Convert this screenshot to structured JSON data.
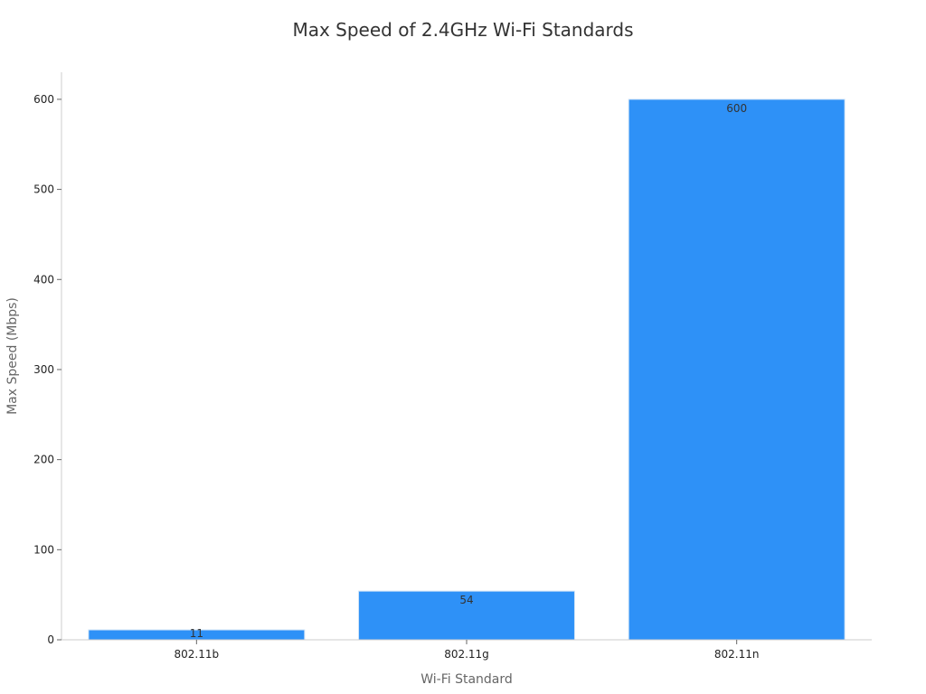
{
  "chart_data": {
    "type": "bar",
    "title": "Max Speed of 2.4GHz Wi-Fi Standards",
    "xlabel": "Wi-Fi Standard",
    "ylabel": "Max Speed (Mbps)",
    "categories": [
      "802.11b",
      "802.11g",
      "802.11n"
    ],
    "values": [
      11,
      54,
      600
    ],
    "data_labels": [
      "11",
      "54",
      "600"
    ],
    "ylim": [
      0,
      630
    ],
    "yticks": [
      0,
      100,
      200,
      300,
      400,
      500,
      600
    ],
    "grid": false,
    "bar_color": "#2e91f7",
    "bar_edge_color": "#cfe3f7"
  }
}
